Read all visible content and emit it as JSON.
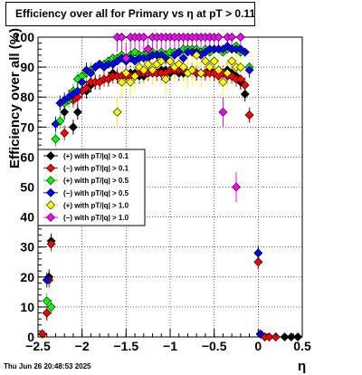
{
  "title": "Efficiency over all for Primary vs   η at pT > 0.11",
  "datestamp": "Thu Jun 26 20:48:53 2025",
  "chart_data": {
    "type": "scatter",
    "title": "Efficiency over all for Primary vs   η at pT > 0.11",
    "xlabel": "η",
    "ylabel": "Efficiency over all (%)",
    "xlim": [
      -2.5,
      0.5
    ],
    "ylim": [
      0,
      100
    ],
    "xticks": [
      "−2.5",
      "−2",
      "−1.5",
      "−1",
      "−0.5",
      "0",
      "0.5"
    ],
    "yticks": [
      "0",
      "10",
      "20",
      "30",
      "40",
      "50",
      "60",
      "70",
      "80",
      "90",
      "100"
    ],
    "grid": true,
    "legend_position": "middle-left",
    "series": [
      {
        "name": "(+) with pT/|q| > 0.1",
        "color": "#000000",
        "points": [
          [
            -2.45,
            1
          ],
          [
            -2.4,
            8
          ],
          [
            -2.375,
            20
          ],
          [
            -2.35,
            32
          ],
          [
            -2.2,
            75
          ],
          [
            -2.1,
            70
          ],
          [
            -2.05,
            75
          ],
          [
            -2.0,
            82
          ],
          [
            -1.95,
            82
          ],
          [
            -1.9,
            84
          ],
          [
            -1.85,
            85
          ],
          [
            -1.8,
            85
          ],
          [
            -1.75,
            86
          ],
          [
            -1.7,
            86
          ],
          [
            -1.65,
            88
          ],
          [
            -1.6,
            87
          ],
          [
            -1.55,
            87
          ],
          [
            -1.5,
            88
          ],
          [
            -1.45,
            88
          ],
          [
            -1.4,
            88
          ],
          [
            -1.35,
            87
          ],
          [
            -1.3,
            87
          ],
          [
            -1.25,
            88
          ],
          [
            -1.2,
            88
          ],
          [
            -1.15,
            88
          ],
          [
            -1.1,
            89
          ],
          [
            -1.05,
            89
          ],
          [
            -1.0,
            88
          ],
          [
            -0.95,
            89
          ],
          [
            -0.9,
            88
          ],
          [
            -0.85,
            88
          ],
          [
            -0.8,
            88
          ],
          [
            -0.75,
            89
          ],
          [
            -0.7,
            88
          ],
          [
            -0.65,
            88
          ],
          [
            -0.6,
            88
          ],
          [
            -0.55,
            89
          ],
          [
            -0.5,
            88
          ],
          [
            -0.45,
            88
          ],
          [
            -0.4,
            88
          ],
          [
            -0.35,
            89
          ],
          [
            -0.3,
            88
          ],
          [
            -0.25,
            87
          ],
          [
            -0.2,
            85
          ],
          [
            -0.15,
            81
          ],
          [
            -0.1,
            74
          ],
          [
            0.0,
            25
          ],
          [
            0.025,
            1
          ],
          [
            0.075,
            0
          ],
          [
            0.125,
            0
          ],
          [
            0.2,
            0
          ],
          [
            0.3,
            0
          ],
          [
            0.375,
            0
          ],
          [
            0.45,
            0
          ]
        ]
      },
      {
        "name": "(−) with pT/|q| > 0.1",
        "color": "#ff0000",
        "points": [
          [
            -2.45,
            1
          ],
          [
            -2.4,
            8
          ],
          [
            -2.375,
            19
          ],
          [
            -2.35,
            31
          ],
          [
            -2.2,
            68
          ],
          [
            -2.1,
            79
          ],
          [
            -2.05,
            80
          ],
          [
            -2.0,
            82
          ],
          [
            -1.95,
            83
          ],
          [
            -1.9,
            85
          ],
          [
            -1.85,
            85
          ],
          [
            -1.8,
            85
          ],
          [
            -1.75,
            86
          ],
          [
            -1.7,
            86
          ],
          [
            -1.65,
            87
          ],
          [
            -1.6,
            87
          ],
          [
            -1.55,
            87
          ],
          [
            -1.5,
            87
          ],
          [
            -1.45,
            87
          ],
          [
            -1.4,
            87
          ],
          [
            -1.35,
            88
          ],
          [
            -1.3,
            88
          ],
          [
            -1.25,
            88
          ],
          [
            -1.2,
            88
          ],
          [
            -1.15,
            88
          ],
          [
            -1.1,
            88
          ],
          [
            -1.05,
            88
          ],
          [
            -1.0,
            89
          ],
          [
            -0.95,
            89
          ],
          [
            -0.9,
            89
          ],
          [
            -0.85,
            89
          ],
          [
            -0.8,
            88
          ],
          [
            -0.75,
            89
          ],
          [
            -0.7,
            88
          ],
          [
            -0.65,
            88
          ],
          [
            -0.6,
            88
          ],
          [
            -0.55,
            88
          ],
          [
            -0.5,
            88
          ],
          [
            -0.45,
            87
          ],
          [
            -0.4,
            88
          ],
          [
            -0.35,
            87
          ],
          [
            -0.3,
            87
          ],
          [
            -0.25,
            86
          ],
          [
            -0.2,
            86
          ],
          [
            -0.15,
            84
          ],
          [
            -0.1,
            74
          ],
          [
            0.0,
            25
          ],
          [
            0.025,
            1
          ],
          [
            0.075,
            0
          ],
          [
            0.125,
            0
          ],
          [
            0.2,
            0
          ]
        ]
      },
      {
        "name": "(+) with pT/|q| > 0.5",
        "color": "#00ff00",
        "points": [
          [
            -2.4,
            12
          ],
          [
            -2.35,
            10
          ],
          [
            -2.3,
            66
          ],
          [
            -2.25,
            72
          ],
          [
            -2.2,
            78
          ],
          [
            -2.15,
            79
          ],
          [
            -2.1,
            82
          ],
          [
            -2.05,
            86
          ],
          [
            -2.0,
            87
          ],
          [
            -1.95,
            88
          ],
          [
            -1.9,
            89
          ],
          [
            -1.85,
            90
          ],
          [
            -1.8,
            91
          ],
          [
            -1.75,
            91
          ],
          [
            -1.7,
            92
          ],
          [
            -1.65,
            93
          ],
          [
            -1.6,
            93
          ],
          [
            -1.55,
            94
          ],
          [
            -1.5,
            93
          ],
          [
            -1.45,
            94
          ],
          [
            -1.4,
            95
          ],
          [
            -1.35,
            94
          ],
          [
            -1.3,
            94
          ],
          [
            -1.25,
            95
          ],
          [
            -1.2,
            95
          ],
          [
            -1.15,
            94
          ],
          [
            -1.1,
            95
          ],
          [
            -1.05,
            94
          ],
          [
            -1.0,
            95
          ],
          [
            -0.95,
            95
          ],
          [
            -0.9,
            95
          ],
          [
            -0.85,
            96
          ],
          [
            -0.8,
            96
          ],
          [
            -0.75,
            96
          ],
          [
            -0.7,
            96
          ],
          [
            -0.65,
            95
          ],
          [
            -0.6,
            96
          ],
          [
            -0.55,
            95
          ],
          [
            -0.5,
            96
          ],
          [
            -0.45,
            96
          ],
          [
            -0.4,
            95
          ],
          [
            -0.35,
            96
          ],
          [
            -0.3,
            96
          ],
          [
            -0.25,
            97
          ],
          [
            -0.2,
            95
          ],
          [
            -0.15,
            95
          ],
          [
            -0.1,
            90
          ],
          [
            0.0,
            28
          ],
          [
            0.025,
            1
          ]
        ]
      },
      {
        "name": "(−) with pT/|q| > 0.5",
        "color": "#0000ff",
        "points": [
          [
            -2.4,
            19
          ],
          [
            -2.3,
            71
          ],
          [
            -2.25,
            78
          ],
          [
            -2.2,
            79
          ],
          [
            -2.15,
            80
          ],
          [
            -2.1,
            81
          ],
          [
            -2.05,
            82
          ],
          [
            -2.0,
            85
          ],
          [
            -1.95,
            89
          ],
          [
            -1.9,
            88
          ],
          [
            -1.85,
            90
          ],
          [
            -1.8,
            91
          ],
          [
            -1.75,
            90
          ],
          [
            -1.7,
            91
          ],
          [
            -1.65,
            91
          ],
          [
            -1.6,
            92
          ],
          [
            -1.55,
            93
          ],
          [
            -1.5,
            92
          ],
          [
            -1.45,
            93
          ],
          [
            -1.4,
            92
          ],
          [
            -1.35,
            93
          ],
          [
            -1.3,
            93
          ],
          [
            -1.25,
            93
          ],
          [
            -1.2,
            94
          ],
          [
            -1.15,
            94
          ],
          [
            -1.1,
            94
          ],
          [
            -1.05,
            93
          ],
          [
            -1.0,
            92
          ],
          [
            -0.95,
            94
          ],
          [
            -0.9,
            95
          ],
          [
            -0.85,
            93
          ],
          [
            -0.8,
            95
          ],
          [
            -0.75,
            95
          ],
          [
            -0.7,
            95
          ],
          [
            -0.65,
            94
          ],
          [
            -0.6,
            95
          ],
          [
            -0.55,
            96
          ],
          [
            -0.5,
            96
          ],
          [
            -0.45,
            96
          ],
          [
            -0.4,
            96
          ],
          [
            -0.35,
            97
          ],
          [
            -0.3,
            96
          ],
          [
            -0.25,
            96
          ],
          [
            -0.2,
            96
          ],
          [
            -0.15,
            95
          ],
          [
            -0.1,
            89
          ],
          [
            0.0,
            28
          ],
          [
            0.025,
            1
          ]
        ]
      },
      {
        "name": "(+) with pT/|q| > 1.0",
        "color": "#ffff00",
        "points": [
          [
            -1.6,
            75
          ],
          [
            -1.55,
            85
          ],
          [
            -1.5,
            88
          ],
          [
            -1.45,
            85
          ],
          [
            -1.4,
            87
          ],
          [
            -1.35,
            90
          ],
          [
            -1.3,
            89
          ],
          [
            -1.25,
            91
          ],
          [
            -1.2,
            89
          ],
          [
            -1.15,
            91
          ],
          [
            -1.1,
            92
          ],
          [
            -1.05,
            86
          ],
          [
            -1.0,
            92
          ],
          [
            -0.95,
            90
          ],
          [
            -0.9,
            91
          ],
          [
            -0.85,
            90
          ],
          [
            -0.8,
            88
          ],
          [
            -0.75,
            89
          ],
          [
            -0.7,
            94
          ],
          [
            -0.65,
            88
          ],
          [
            -0.6,
            92
          ],
          [
            -0.55,
            90
          ],
          [
            -0.5,
            92
          ],
          [
            -0.45,
            89
          ],
          [
            -0.4,
            85
          ],
          [
            -0.35,
            88
          ],
          [
            -0.3,
            92
          ],
          [
            -0.25,
            90
          ],
          [
            -0.2,
            90
          ]
        ]
      },
      {
        "name": "(−) with pT/|q| > 1.0",
        "color": "#ff00ff",
        "points": [
          [
            -1.6,
            100
          ],
          [
            -1.55,
            100
          ],
          [
            -1.5,
            93
          ],
          [
            -1.45,
            100
          ],
          [
            -1.4,
            100
          ],
          [
            -1.35,
            100
          ],
          [
            -1.3,
            100
          ],
          [
            -1.25,
            96
          ],
          [
            -1.2,
            100
          ],
          [
            -1.15,
            100
          ],
          [
            -1.1,
            100
          ],
          [
            -1.05,
            100
          ],
          [
            -1.0,
            100
          ],
          [
            -0.95,
            100
          ],
          [
            -0.9,
            100
          ],
          [
            -0.85,
            100
          ],
          [
            -0.8,
            100
          ],
          [
            -0.75,
            100
          ],
          [
            -0.7,
            100
          ],
          [
            -0.65,
            100
          ],
          [
            -0.6,
            100
          ],
          [
            -0.55,
            100
          ],
          [
            -0.5,
            100
          ],
          [
            -0.45,
            100
          ],
          [
            -0.4,
            75
          ],
          [
            -0.35,
            100
          ],
          [
            -0.3,
            100
          ],
          [
            -0.25,
            50
          ],
          [
            -0.2,
            100
          ]
        ]
      }
    ]
  }
}
